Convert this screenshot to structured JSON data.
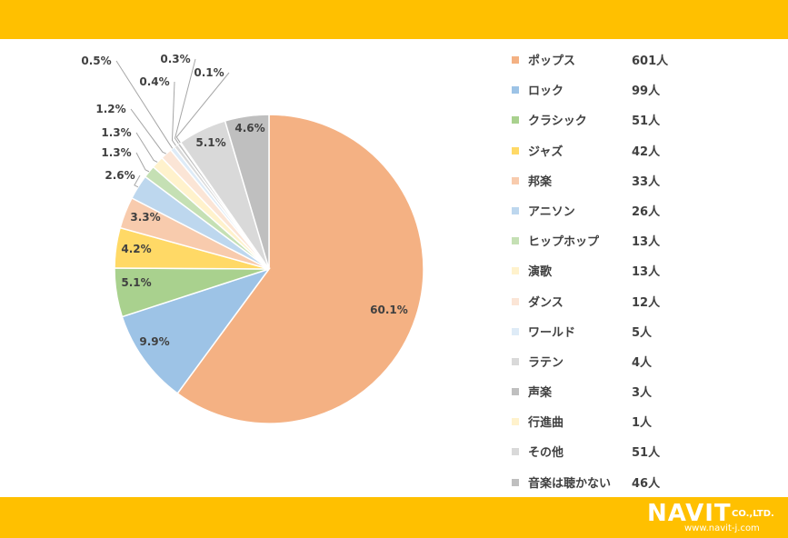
{
  "chart_data": {
    "type": "pie",
    "categories": [
      "ポップス",
      "ロック",
      "クラシック",
      "ジャズ",
      "邦楽",
      "アニソン",
      "ヒップホップ",
      "演歌",
      "ダンス",
      "ワールド",
      "ラテン",
      "声楽",
      "行進曲",
      "その他",
      "音楽は聴かない"
    ],
    "counts": [
      "601人",
      "99人",
      "51人",
      "42人",
      "33人",
      "26人",
      "13人",
      "13人",
      "12人",
      "5人",
      "4人",
      "3人",
      "1人",
      "51人",
      "46人"
    ],
    "values": [
      601,
      99,
      51,
      42,
      33,
      26,
      13,
      13,
      12,
      5,
      4,
      3,
      1,
      51,
      46
    ],
    "percent_labels": [
      "60.1%",
      "9.9%",
      "5.1%",
      "4.2%",
      "3.3%",
      "2.6%",
      "1.3%",
      "1.3%",
      "1.2%",
      "0.5%",
      "0.4%",
      "0.3%",
      "0.1%",
      "5.1%",
      "4.6%"
    ],
    "colors": [
      "#f4b183",
      "#9dc3e6",
      "#a9d18e",
      "#ffd966",
      "#f8cbad",
      "#bdd7ee",
      "#c5e0b4",
      "#fff2cc",
      "#fbe5d6",
      "#deebf7",
      "#d9d9d9",
      "#bfbfbf",
      "#fff2cc",
      "#d9d9d9",
      "#bfbfbf"
    ],
    "start_angle_deg": 0,
    "direction": "clockwise",
    "legend_position": "right"
  },
  "logo": {
    "brand": "NAVIT",
    "suffix": "CO.,LTD.",
    "url": "www.navit-j.com"
  }
}
